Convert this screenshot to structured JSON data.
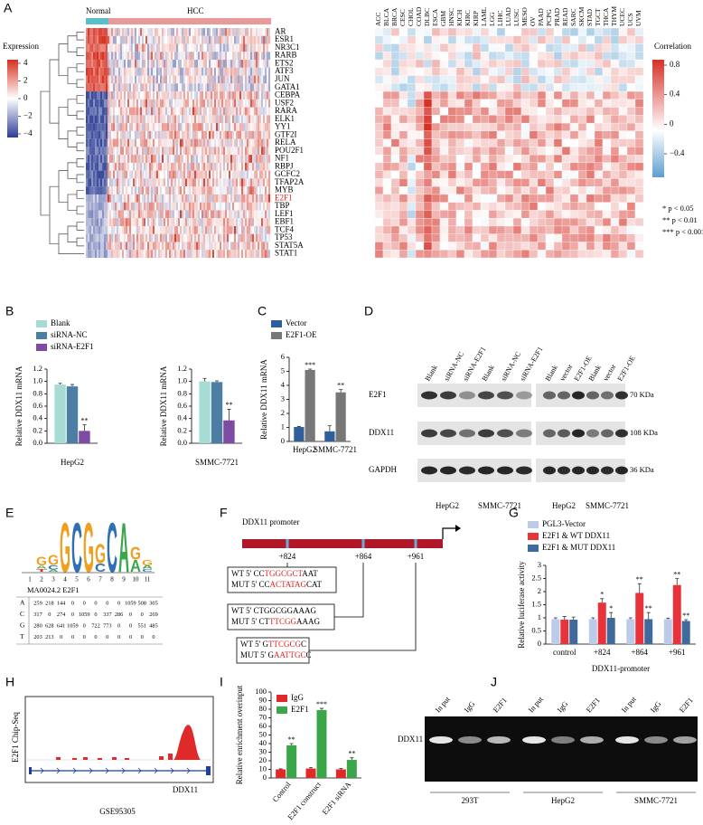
{
  "panel_labels": [
    "A",
    "B",
    "C",
    "D",
    "E",
    "F",
    "G",
    "H",
    "I",
    "J"
  ],
  "panel_a": {
    "groups": [
      "Normal",
      "HCC"
    ],
    "group_colors": [
      "#5bbfc9",
      "#e79a98"
    ],
    "expression_legend": {
      "title": "Expression",
      "ticks": [
        4,
        2,
        0,
        {
          "value": -2,
          "label": "−2"
        },
        {
          "value": -4,
          "label": "−4"
        }
      ]
    },
    "genes": [
      "AR",
      "ESR1",
      "NR3C1",
      "RARB",
      "ETS2",
      "ATF3",
      "JUN",
      "GATA1",
      "CEBPA",
      "USF2",
      "RARA",
      "ELK1",
      "YY1",
      "GTF2I",
      "RELA",
      "POU2F1",
      "NF1",
      "RBPJ",
      "GCFC2",
      "TFAP2A",
      "MYB",
      "E2F1",
      "TBP",
      "LEF1",
      "EBF1",
      "TCF4",
      "TP53",
      "STAT5A",
      "STAT1"
    ],
    "highlighted_gene": "E2F1",
    "highlight_color": "#e0211d",
    "cancers": [
      "ACC",
      "BLCA",
      "BRCA",
      "CESC",
      "CHOL",
      "COAD",
      "DLBC",
      "ESCA",
      "GBM",
      "HNSC",
      "KICH",
      "KIRC",
      "KIRP",
      "LAML",
      "LGG",
      "LIHC",
      "LUAD",
      "LUSC",
      "MESO",
      "OV",
      "PAAD",
      "PCPG",
      "PRAD",
      "READ",
      "SARC",
      "SKCM",
      "STAD",
      "TGCT",
      "THCA",
      "THYM",
      "UCEC",
      "UCS",
      "UVM"
    ],
    "correlation_legend": {
      "title": "Correlation",
      "ticks": [
        0.8,
        0.4,
        0,
        {
          "value": -0.4,
          "label": "−0.4"
        }
      ]
    },
    "significance": [
      "* p < 0.05",
      "** p < 0.01",
      "*** p < 0.001"
    ]
  },
  "chart_data": [
    {
      "type": "bar",
      "ylabel": "Relative DDX11 mRNA",
      "xlabel": "HepG2",
      "categories": [
        null
      ],
      "series": [
        {
          "name": "Blank",
          "color": "#a7dcd4",
          "values": [
            0.95
          ],
          "errors": [
            0.02
          ],
          "annotations": [
            null
          ]
        },
        {
          "name": "siRNA-NC",
          "color": "#4c7ea3",
          "values": [
            0.92
          ],
          "errors": [
            0.03
          ],
          "annotations": [
            null
          ]
        },
        {
          "name": "siRNA-E2F1",
          "color": "#7d4b9f",
          "values": [
            0.2
          ],
          "errors": [
            0.1
          ],
          "annotations": [
            "**"
          ]
        }
      ],
      "ylim": [
        0,
        1.2
      ],
      "yticks": [
        {
          "value": 0,
          "label": "0.0"
        },
        0.2,
        0.4,
        0.6,
        0.8,
        {
          "value": 1,
          "label": "1.0"
        },
        1.2
      ],
      "legend": "above"
    },
    {
      "type": "bar",
      "ylabel": "Relative DDX11 mRNA",
      "xlabel": "SMMC-7721",
      "categories": [
        null
      ],
      "series": [
        {
          "color": "#a7dcd4",
          "values": [
            1.0
          ],
          "errors": [
            0.05
          ],
          "annotations": [
            null
          ]
        },
        {
          "color": "#4c7ea3",
          "values": [
            0.99
          ],
          "errors": [
            0.02
          ],
          "annotations": [
            null
          ]
        },
        {
          "color": "#7d4b9f",
          "values": [
            0.37
          ],
          "errors": [
            0.18
          ],
          "annotations": [
            "**"
          ]
        }
      ],
      "ylim": [
        0,
        1.2
      ],
      "yticks": [
        {
          "value": 0,
          "label": "0.0"
        },
        0.2,
        0.4,
        0.6,
        0.8,
        {
          "value": 1,
          "label": "1.0"
        },
        1.2
      ]
    },
    {
      "type": "bar",
      "ylabel": "Relative DDX11 mRNA",
      "categories": [
        "HepG2",
        "SMMC-7721"
      ],
      "series": [
        {
          "name": "Vector",
          "color": "#2e5e9c",
          "values": [
            1.03,
            0.72
          ],
          "errors": [
            0.04,
            0.4
          ],
          "annotations": [
            null,
            null
          ]
        },
        {
          "name": "E2F1-OE",
          "color": "#777777",
          "values": [
            5.1,
            3.5
          ],
          "errors": [
            0.06,
            0.2
          ],
          "annotations": [
            "***",
            "**"
          ]
        }
      ],
      "ylim": [
        0,
        6
      ],
      "yticks": [
        0,
        1,
        2,
        3,
        4,
        5,
        6
      ],
      "legend": "above"
    },
    {
      "type": "bar",
      "ylabel": "Relative luciferase activity",
      "xlabel": "DDX11-promoter",
      "categories": [
        "control",
        "+824",
        "+864",
        "+961"
      ],
      "series": [
        {
          "name": "PGL3-Vector",
          "color": "#bccbe8",
          "values": [
            0.95,
            0.95,
            0.95,
            0.95
          ],
          "errors": [
            0.05,
            0.05,
            0.05,
            0.04
          ],
          "annotations": [
            null,
            null,
            null,
            null
          ]
        },
        {
          "name": "E2F1 & WT DDX11",
          "color": "#e8333a",
          "values": [
            0.93,
            1.58,
            1.95,
            2.25
          ],
          "errors": [
            0.12,
            0.15,
            0.35,
            0.25
          ],
          "annotations": [
            null,
            "*",
            "**",
            "**"
          ]
        },
        {
          "name": "E2F1 & MUT DDX11",
          "color": "#3e6b9c",
          "values": [
            0.93,
            1.0,
            0.95,
            0.88
          ],
          "errors": [
            0.1,
            0.2,
            0.25,
            0.05
          ],
          "annotations": [
            null,
            "*",
            "**",
            "**"
          ]
        }
      ],
      "ylim": [
        0,
        3
      ],
      "yticks": [
        0,
        0.5,
        1,
        1.5,
        2,
        2.5,
        3
      ],
      "legend": "above"
    },
    {
      "type": "bar",
      "ylabel": "Relative enrichment overinput",
      "categories": [
        "Control",
        "E2F1 construct",
        "E2F1 siRNA"
      ],
      "series": [
        {
          "name": "IgG",
          "color": "#e02a2a",
          "values": [
            10,
            11,
            10
          ],
          "errors": [
            0.6,
            1.2,
            1.0
          ],
          "annotations": [
            null,
            null,
            null
          ]
        },
        {
          "name": "E2F1",
          "color": "#3aa64a",
          "values": [
            38,
            79,
            21
          ],
          "errors": [
            2,
            2,
            2.5
          ],
          "annotations": [
            "**",
            "***",
            "**"
          ]
        }
      ],
      "ylim": [
        0,
        100
      ],
      "yticks": [
        0,
        10,
        20,
        30,
        40,
        50,
        60,
        70,
        80,
        90,
        100
      ],
      "legend": "upper left"
    }
  ],
  "panel_d": {
    "lanes": [
      "Blank",
      "siRNA-NC",
      "siRNA-E2F1",
      "Blank",
      "siRNA-NC",
      "siRNA-E2F1",
      "Blank",
      "vector",
      "E2F1-OE",
      "Blank",
      "vector",
      "E2F1-OE"
    ],
    "rows": [
      "E2F1",
      "DDX11",
      "GAPDH"
    ],
    "sizes": [
      "70 KDa",
      "108 KDa",
      "36 KDa"
    ],
    "groups": [
      "HepG2",
      "SMMC-7721",
      "HepG2",
      "SMMC-7721"
    ]
  },
  "panel_e": {
    "title": "MA0024.2 E2F1",
    "positions": [
      1,
      2,
      3,
      4,
      5,
      6,
      7,
      8,
      9,
      10,
      11
    ],
    "table": {
      "rows": [
        [
          "A",
          259,
          218,
          144,
          0,
          0,
          0,
          0,
          0,
          1059,
          508,
          305
        ],
        [
          "C",
          317,
          0,
          274,
          0,
          1059,
          0,
          337,
          286,
          0,
          0,
          269
        ],
        [
          "G",
          280,
          628,
          641,
          1059,
          0,
          722,
          773,
          0,
          0,
          551,
          485
        ],
        [
          "T",
          203,
          213,
          0,
          0,
          0,
          0,
          0,
          0,
          0,
          0,
          0
        ]
      ]
    }
  },
  "panel_f": {
    "title": "DDX11 promoter",
    "sites": [
      "+824",
      "+864",
      "+961"
    ],
    "sequences": [
      {
        "wt": [
          "WT 5' CC",
          "TGGCGCT",
          "AAT"
        ],
        "mut": [
          "MUT 5' CC",
          "ACTATAG",
          "CAT"
        ]
      },
      {
        "wt": [
          "WT 5' CTGGCGGAAAG"
        ],
        "mut": [
          "MUT 5' CT",
          "TTCGG",
          "AAAG"
        ]
      },
      {
        "wt": [
          "WT 5' G",
          "TTCGCG",
          "C"
        ],
        "mut": [
          "MUT 5' G",
          "AATTGC",
          "C"
        ]
      }
    ],
    "highlight_color": "#e0211d"
  },
  "panel_h": {
    "ylabel": "E2F1 Chip-Seq",
    "gene": "DDX11",
    "source": "GSE95305"
  },
  "panel_j": {
    "row_label": "DDX11",
    "lanes": [
      "In put",
      "IgG",
      "E2F1",
      "In put",
      "IgG",
      "E2F1",
      "In put",
      "IgG",
      "E2F1"
    ],
    "groups": [
      "293T",
      "HepG2",
      "SMMC-7721"
    ]
  }
}
